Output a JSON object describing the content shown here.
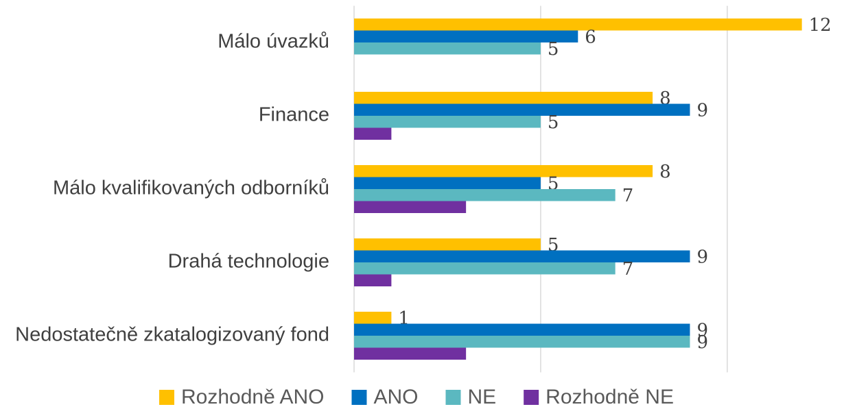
{
  "chart_data": {
    "type": "barh",
    "categories": [
      "Málo úvazků",
      "Finance",
      "Málo kvalifikovaných odborníků",
      "Drahá technologie",
      "Nedostatečně zkatalogizovaný fond"
    ],
    "series": [
      {
        "name": "Rozhodně ANO",
        "color": "#FFC000",
        "values": [
          12,
          8,
          8,
          5,
          1
        ],
        "show_labels": true
      },
      {
        "name": "ANO",
        "color": "#0070C0",
        "values": [
          6,
          9,
          5,
          9,
          9
        ],
        "show_labels": true
      },
      {
        "name": "NE",
        "color": "#5BB8C0",
        "values": [
          5,
          5,
          7,
          7,
          9
        ],
        "show_labels": true
      },
      {
        "name": "Rozhodně NE",
        "color": "#7030A0",
        "values": [
          null,
          1,
          3,
          1,
          3
        ],
        "show_labels": false
      }
    ],
    "xlim": [
      0,
      13
    ],
    "xticks": [
      0,
      5,
      10
    ],
    "tick_labels": false,
    "grid": true,
    "legend": "bottom"
  }
}
